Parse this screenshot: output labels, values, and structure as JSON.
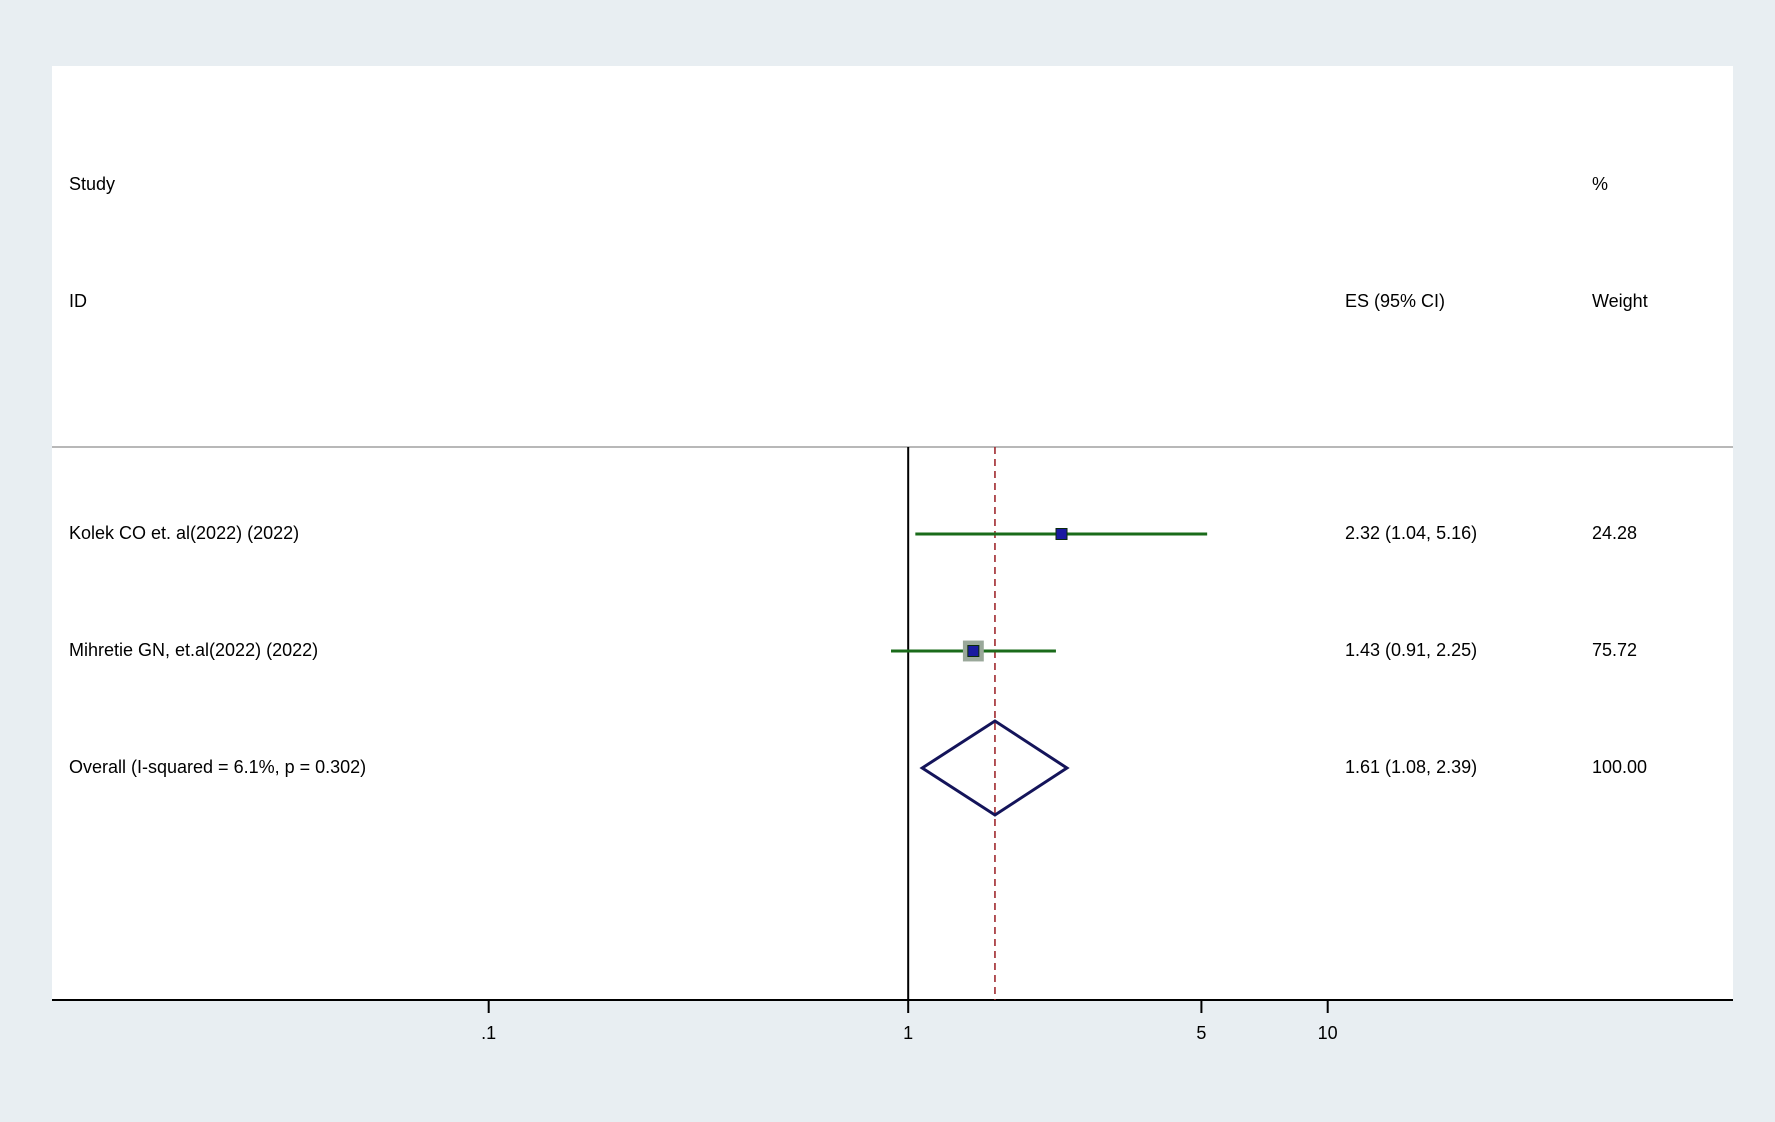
{
  "chart_data": {
    "type": "forest",
    "headers": {
      "study": "Study",
      "id": "ID",
      "es": "ES (95% CI)",
      "pct": "%",
      "weight": "Weight"
    },
    "studies": [
      {
        "label": "Kolek CO et. al(2022) (2022)",
        "es": 2.32,
        "ci": [
          1.04,
          5.16
        ],
        "es_label": "2.32 (1.04, 5.16)",
        "weight": 24.28,
        "weight_label": "24.28"
      },
      {
        "label": "Mihretie GN, et.al(2022) (2022)",
        "es": 1.43,
        "ci": [
          0.91,
          2.25
        ],
        "es_label": "1.43 (0.91, 2.25)",
        "weight": 75.72,
        "weight_label": "75.72"
      }
    ],
    "overall": {
      "label": "Overall  (I-squared = 6.1%, p = 0.302)",
      "es": 1.61,
      "ci": [
        1.08,
        2.39
      ],
      "es_label": "1.61 (1.08, 2.39)",
      "weight": 100,
      "weight_label": "100.00"
    },
    "null_line": 1,
    "log_x": true,
    "xlim": [
      0.0091,
      92.5
    ],
    "xticks": [
      {
        "value": 0.1,
        "label": ".1"
      },
      1,
      5,
      10
    ],
    "colors": {
      "ci": "#1a6b1a",
      "box": "#1a1aa0",
      "box_border": "#9aa89a",
      "diamond": "#14145a",
      "null_line": "#000000",
      "overall_line": "#a0282d"
    }
  }
}
